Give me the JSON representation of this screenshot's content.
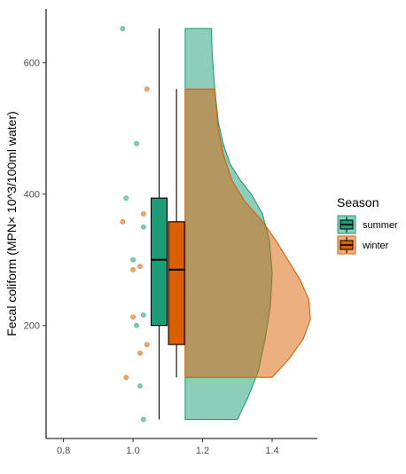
{
  "chart_data": {
    "type": "raincloud",
    "ylabel": "Fecal coliform (MPN× 10^3/100ml water)",
    "xlabel": "",
    "xlim": [
      0.75,
      1.53
    ],
    "ylim": [
      28,
      682
    ],
    "x_ticks": [
      0.8,
      1.0,
      1.2,
      1.4
    ],
    "x_tick_labels": [
      "0.8",
      "1.0",
      "1.2",
      "1.4"
    ],
    "y_ticks": [
      200,
      400,
      600
    ],
    "y_tick_labels": [
      "200",
      "400",
      "600"
    ],
    "grid": false,
    "legend": {
      "title": "Season",
      "placement": "right",
      "entries": [
        "summer",
        "winter"
      ]
    },
    "series": [
      {
        "name": "summer",
        "color": "#1b9e77",
        "fill": "#8fd1b8",
        "points": [
          {
            "x": 0.97,
            "y": 652
          },
          {
            "x": 1.01,
            "y": 477
          },
          {
            "x": 0.98,
            "y": 394
          },
          {
            "x": 1.03,
            "y": 350
          },
          {
            "x": 1.0,
            "y": 300
          },
          {
            "x": 1.03,
            "y": 216
          },
          {
            "x": 1.01,
            "y": 200
          },
          {
            "x": 1.02,
            "y": 108
          },
          {
            "x": 1.03,
            "y": 57
          }
        ],
        "box": {
          "x": 1.075,
          "min": 57,
          "q1": 200,
          "median": 300,
          "q3": 394,
          "max": 652
        },
        "violin": {
          "x0": 1.15,
          "extent": [
            57,
            652
          ],
          "profile": [
            {
              "y": 57,
              "x": 1.3
            },
            {
              "y": 90,
              "x": 1.33
            },
            {
              "y": 130,
              "x": 1.36
            },
            {
              "y": 180,
              "x": 1.38
            },
            {
              "y": 230,
              "x": 1.395
            },
            {
              "y": 280,
              "x": 1.4
            },
            {
              "y": 330,
              "x": 1.392
            },
            {
              "y": 370,
              "x": 1.372
            },
            {
              "y": 400,
              "x": 1.34
            },
            {
              "y": 420,
              "x": 1.31
            },
            {
              "y": 445,
              "x": 1.28
            },
            {
              "y": 475,
              "x": 1.26
            },
            {
              "y": 510,
              "x": 1.245
            },
            {
              "y": 560,
              "x": 1.235
            },
            {
              "y": 610,
              "x": 1.228
            },
            {
              "y": 652,
              "x": 1.225
            }
          ]
        }
      },
      {
        "name": "winter",
        "color": "#d95f02",
        "fill": "#e99f6e",
        "points": [
          {
            "x": 1.04,
            "y": 560
          },
          {
            "x": 1.03,
            "y": 370
          },
          {
            "x": 0.97,
            "y": 358
          },
          {
            "x": 1.02,
            "y": 290
          },
          {
            "x": 1.0,
            "y": 285
          },
          {
            "x": 1.0,
            "y": 213
          },
          {
            "x": 1.04,
            "y": 171
          },
          {
            "x": 1.02,
            "y": 158
          },
          {
            "x": 0.98,
            "y": 121
          }
        ],
        "box": {
          "x": 1.125,
          "min": 121,
          "q1": 171,
          "median": 285,
          "q3": 358,
          "max": 560
        },
        "violin": {
          "x0": 1.15,
          "extent": [
            121,
            560
          ],
          "profile": [
            {
              "y": 121,
              "x": 1.4
            },
            {
              "y": 150,
              "x": 1.45
            },
            {
              "y": 180,
              "x": 1.49
            },
            {
              "y": 210,
              "x": 1.51
            },
            {
              "y": 240,
              "x": 1.505
            },
            {
              "y": 270,
              "x": 1.48
            },
            {
              "y": 300,
              "x": 1.445
            },
            {
              "y": 330,
              "x": 1.41
            },
            {
              "y": 360,
              "x": 1.37
            },
            {
              "y": 390,
              "x": 1.32
            },
            {
              "y": 420,
              "x": 1.285
            },
            {
              "y": 460,
              "x": 1.26
            },
            {
              "y": 500,
              "x": 1.245
            },
            {
              "y": 560,
              "x": 1.235
            }
          ]
        }
      }
    ]
  }
}
